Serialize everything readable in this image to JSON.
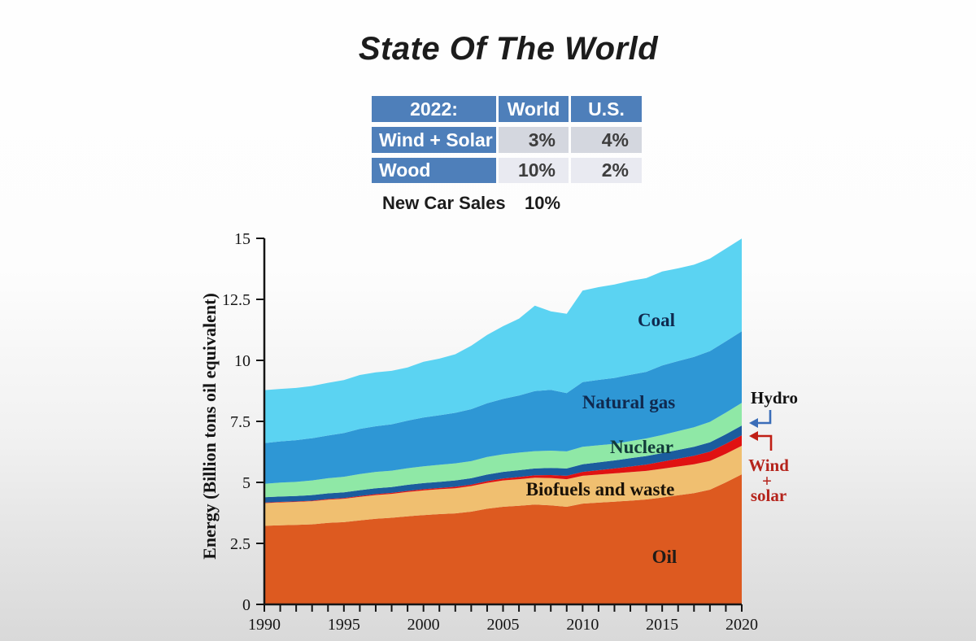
{
  "title": "State Of The World",
  "colors": {
    "table_blue": "#4e7fba",
    "table_row1_bg": "#d4d7df",
    "table_row2_bg": "#e9eaf1"
  },
  "table": {
    "header": [
      "2022:",
      "World",
      "U.S."
    ],
    "rows": [
      {
        "label": "Wind + Solar",
        "world": "3%",
        "us": "4%"
      },
      {
        "label": "Wood",
        "world": "10%",
        "us": "2%"
      }
    ],
    "footer_label": "New Car Sales",
    "footer_value": "10%"
  },
  "chart_data": {
    "type": "area",
    "stacked": true,
    "title": "",
    "xlabel": "",
    "ylabel": "Energy (Billion tons oil equivalent)",
    "xlim": [
      1990,
      2020
    ],
    "ylim": [
      0,
      15
    ],
    "grid": false,
    "legend_position": "labels-inside-areas",
    "x": [
      1990,
      1991,
      1992,
      1993,
      1994,
      1995,
      1996,
      1997,
      1998,
      1999,
      2000,
      2001,
      2002,
      2003,
      2004,
      2005,
      2006,
      2007,
      2008,
      2009,
      2010,
      2011,
      2012,
      2013,
      2014,
      2015,
      2016,
      2017,
      2018,
      2019,
      2020
    ],
    "y_ticks": [
      0,
      2.5,
      5,
      7.5,
      10,
      12.5,
      15
    ],
    "y_tick_labels": [
      "0",
      "2.5",
      "5",
      "7.5",
      "10",
      "12.5",
      "15"
    ],
    "x_tick_labels": [
      "1990",
      "1995",
      "2000",
      "2005",
      "2010",
      "2015",
      "2020"
    ],
    "x_minor_tick_every": 1,
    "series": [
      {
        "key": "oil",
        "name": "Oil",
        "color": "#dd5a20",
        "values": [
          3.22,
          3.24,
          3.26,
          3.28,
          3.34,
          3.37,
          3.44,
          3.51,
          3.55,
          3.61,
          3.66,
          3.7,
          3.73,
          3.8,
          3.92,
          4.0,
          4.04,
          4.09,
          4.06,
          4.0,
          4.13,
          4.17,
          4.21,
          4.25,
          4.3,
          4.38,
          4.47,
          4.56,
          4.7,
          5.0,
          5.33
        ]
      },
      {
        "key": "biofuels",
        "name": "Biofuels and waste",
        "color": "#f0bf70",
        "values": [
          0.93,
          0.94,
          0.94,
          0.95,
          0.95,
          0.96,
          0.97,
          0.97,
          0.98,
          1.0,
          1.01,
          1.02,
          1.03,
          1.05,
          1.06,
          1.08,
          1.09,
          1.1,
          1.12,
          1.13,
          1.14,
          1.15,
          1.16,
          1.17,
          1.17,
          1.18,
          1.18,
          1.18,
          1.18,
          1.17,
          1.17
        ]
      },
      {
        "key": "wind_solar",
        "name": "Wind + solar",
        "color": "#e01212",
        "values": [
          0.02,
          0.02,
          0.02,
          0.02,
          0.03,
          0.03,
          0.03,
          0.04,
          0.04,
          0.04,
          0.05,
          0.05,
          0.06,
          0.06,
          0.07,
          0.08,
          0.09,
          0.1,
          0.12,
          0.14,
          0.16,
          0.18,
          0.2,
          0.23,
          0.26,
          0.29,
          0.32,
          0.35,
          0.38,
          0.41,
          0.43
        ]
      },
      {
        "key": "hydro",
        "name": "Hydro",
        "color": "#1b5c9e",
        "values": [
          0.22,
          0.22,
          0.22,
          0.23,
          0.23,
          0.23,
          0.24,
          0.24,
          0.24,
          0.25,
          0.25,
          0.25,
          0.26,
          0.26,
          0.27,
          0.27,
          0.28,
          0.28,
          0.29,
          0.3,
          0.31,
          0.32,
          0.33,
          0.34,
          0.35,
          0.35,
          0.36,
          0.37,
          0.38,
          0.39,
          0.4
        ]
      },
      {
        "key": "nuclear",
        "name": "Nuclear",
        "color": "#8fe8a6",
        "values": [
          0.55,
          0.57,
          0.58,
          0.6,
          0.62,
          0.64,
          0.66,
          0.67,
          0.67,
          0.68,
          0.69,
          0.7,
          0.7,
          0.7,
          0.72,
          0.72,
          0.72,
          0.71,
          0.71,
          0.7,
          0.72,
          0.7,
          0.68,
          0.7,
          0.72,
          0.74,
          0.77,
          0.8,
          0.84,
          0.89,
          0.93
        ]
      },
      {
        "key": "natural_gas",
        "name": "Natural gas",
        "color": "#2e97d5",
        "values": [
          1.67,
          1.69,
          1.71,
          1.73,
          1.75,
          1.79,
          1.85,
          1.87,
          1.9,
          1.95,
          2.0,
          2.03,
          2.07,
          2.13,
          2.2,
          2.27,
          2.34,
          2.46,
          2.49,
          2.39,
          2.65,
          2.68,
          2.7,
          2.72,
          2.73,
          2.85,
          2.87,
          2.88,
          2.9,
          2.92,
          2.93
        ]
      },
      {
        "key": "coal",
        "name": "Coal",
        "color": "#5bd3f2",
        "values": [
          2.17,
          2.15,
          2.14,
          2.14,
          2.16,
          2.17,
          2.21,
          2.21,
          2.19,
          2.18,
          2.28,
          2.32,
          2.4,
          2.6,
          2.8,
          2.98,
          3.15,
          3.5,
          3.22,
          3.25,
          3.75,
          3.8,
          3.83,
          3.85,
          3.84,
          3.85,
          3.8,
          3.78,
          3.79,
          3.8,
          3.8
        ]
      }
    ],
    "area_labels": [
      {
        "text": "Coal",
        "color": "#10294f"
      },
      {
        "text": "Natural gas",
        "color": "#10294f"
      },
      {
        "text": "Nuclear",
        "color": "#123a3a"
      },
      {
        "text": "Biofuels and waste",
        "color": "#1a1208"
      },
      {
        "text": "Oil",
        "color": "#201c18"
      }
    ],
    "annotations": {
      "hydro": {
        "label": "Hydro",
        "text_color": "#111111",
        "arrow_color": "#3a6db8"
      },
      "wind_solar": {
        "lines": [
          "Wind",
          "+",
          "solar"
        ],
        "text_color": "#b5241c",
        "arrow_color": "#c01f15"
      }
    }
  }
}
